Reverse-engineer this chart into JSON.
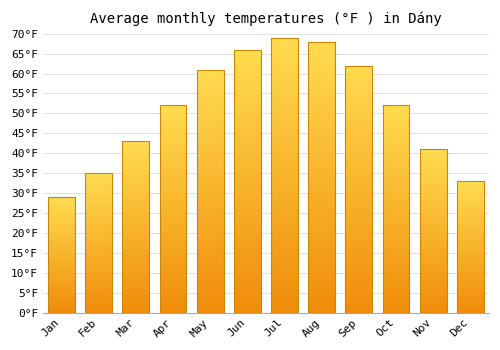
{
  "title": "Average monthly temperatures (°F ) in Dány",
  "months": [
    "Jan",
    "Feb",
    "Mar",
    "Apr",
    "May",
    "Jun",
    "Jul",
    "Aug",
    "Sep",
    "Oct",
    "Nov",
    "Dec"
  ],
  "values": [
    29,
    35,
    43,
    52,
    61,
    66,
    69,
    68,
    62,
    52,
    41,
    33
  ],
  "ylim": [
    0,
    70
  ],
  "yticks": [
    0,
    5,
    10,
    15,
    20,
    25,
    30,
    35,
    40,
    45,
    50,
    55,
    60,
    65,
    70
  ],
  "ytick_labels": [
    "0°F",
    "5°F",
    "10°F",
    "15°F",
    "20°F",
    "25°F",
    "30°F",
    "35°F",
    "40°F",
    "45°F",
    "50°F",
    "55°F",
    "60°F",
    "65°F",
    "70°F"
  ],
  "bar_color_top": "#FFD84D",
  "bar_color_mid": "#FDB92A",
  "bar_color_bottom": "#F5960A",
  "bar_edge_color": "#C8860A",
  "background_color": "#FFFFFF",
  "grid_color": "#E0E0E0",
  "title_fontsize": 10,
  "tick_fontsize": 8
}
